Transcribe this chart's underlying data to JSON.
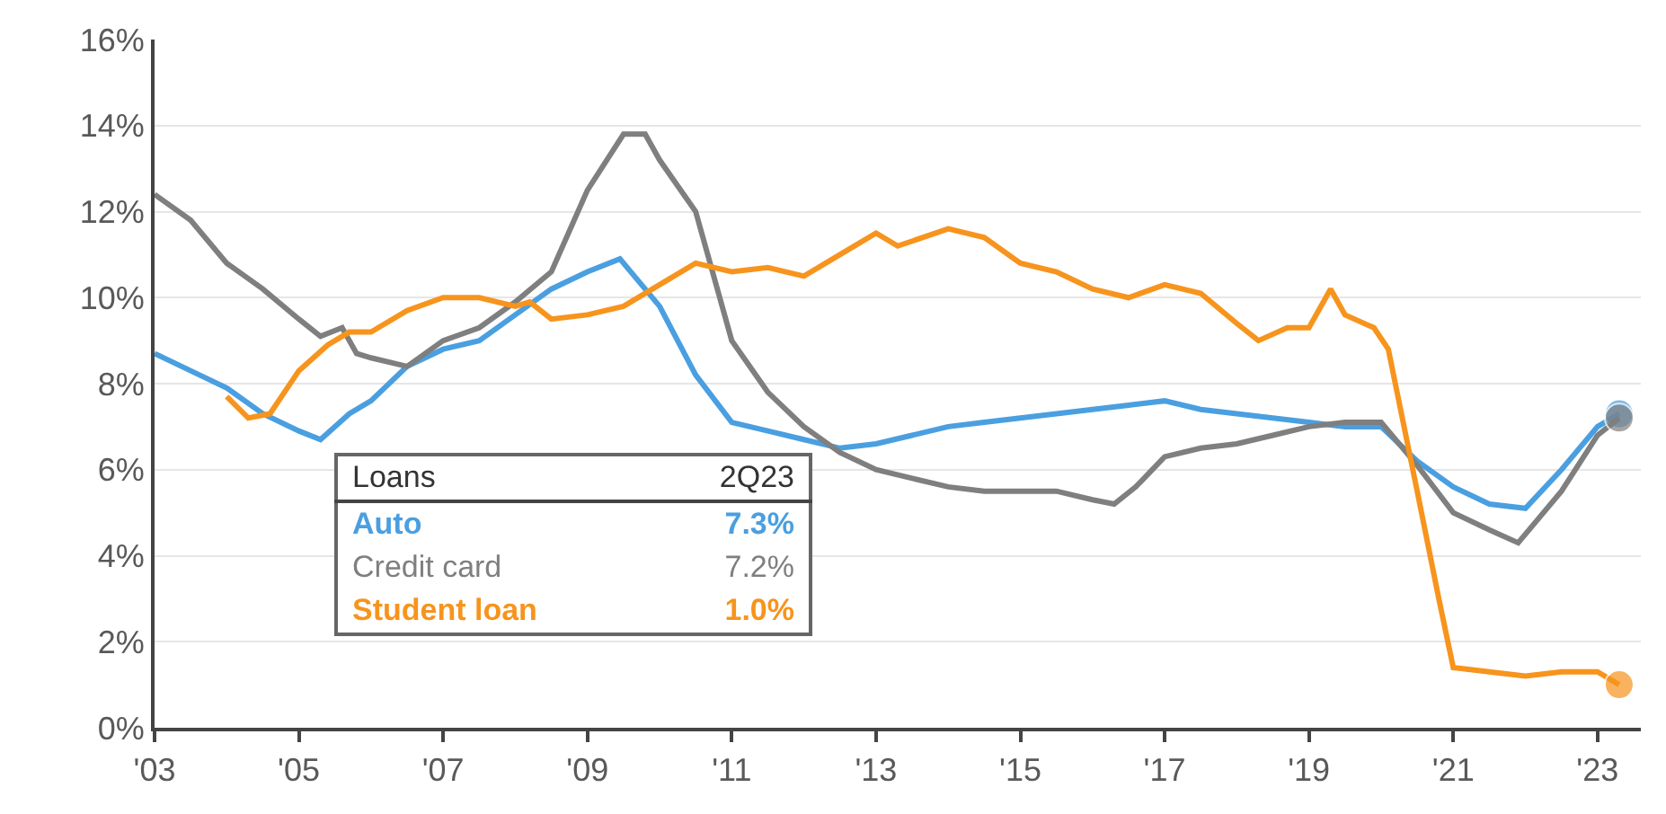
{
  "chart_data": {
    "type": "line",
    "legend_title": "Loans",
    "annotations": [
      "2Q23",
      "7.3%",
      "7.2%",
      "1.0%"
    ],
    "xlim": [
      2003,
      2023.6
    ],
    "xticks": [
      {
        "value": 2003,
        "label": "'03"
      },
      {
        "value": 2005,
        "label": "'05"
      },
      {
        "value": 2007,
        "label": "'07"
      },
      {
        "value": 2009,
        "label": "'09"
      },
      {
        "value": 2011,
        "label": "'11"
      },
      {
        "value": 2013,
        "label": "'13"
      },
      {
        "value": 2015,
        "label": "'15"
      },
      {
        "value": 2017,
        "label": "'17"
      },
      {
        "value": 2019,
        "label": "'19"
      },
      {
        "value": 2021,
        "label": "'21"
      },
      {
        "value": 2023,
        "label": "'23"
      }
    ],
    "ylim": [
      0,
      16
    ],
    "yticks": [
      {
        "value": 0,
        "label": "0%"
      },
      {
        "value": 2,
        "label": "2%"
      },
      {
        "value": 4,
        "label": "4%"
      },
      {
        "value": 6,
        "label": "6%"
      },
      {
        "value": 8,
        "label": "8%"
      },
      {
        "value": 10,
        "label": "10%"
      },
      {
        "value": 12,
        "label": "12%"
      },
      {
        "value": 14,
        "label": "14%"
      },
      {
        "value": 16,
        "label": "16%"
      }
    ],
    "grid": "y",
    "legend": "bottom left",
    "marker": "none",
    "line_style": "solid",
    "series": [
      {
        "name": "Auto",
        "color": "#4a9fe0",
        "x": [
          2003,
          2003.5,
          2004,
          2004.5,
          2005,
          2005.3,
          2005.7,
          2006,
          2006.5,
          2007,
          2007.5,
          2008,
          2008.5,
          2009,
          2009.45,
          2010,
          2010.5,
          2011,
          2011.5,
          2012,
          2012.5,
          2013,
          2013.5,
          2014,
          2014.5,
          2015,
          2015.5,
          2016,
          2016.5,
          2017,
          2017.5,
          2018,
          2018.5,
          2019,
          2019.5,
          2020,
          2020.5,
          2021,
          2021.5,
          2022,
          2022.5,
          2023,
          2023.3
        ],
        "values": [
          8.7,
          8.3,
          7.9,
          7.3,
          6.9,
          6.7,
          7.3,
          7.6,
          8.4,
          8.8,
          9.0,
          9.6,
          10.2,
          10.6,
          10.9,
          9.8,
          8.2,
          7.1,
          6.9,
          6.7,
          6.5,
          6.6,
          6.8,
          7.0,
          7.1,
          7.2,
          7.3,
          7.4,
          7.5,
          7.6,
          7.4,
          7.3,
          7.2,
          7.1,
          7.0,
          7.0,
          6.2,
          5.6,
          5.2,
          5.1,
          6.0,
          7.0,
          7.3
        ]
      },
      {
        "name": "Credit card",
        "color": "#7f7f7f",
        "x": [
          2003,
          2003.5,
          2004,
          2004.5,
          2005,
          2005.3,
          2005.6,
          2005.8,
          2006,
          2006.5,
          2007,
          2007.5,
          2008,
          2008.5,
          2009,
          2009.5,
          2009.8,
          2010,
          2010.5,
          2011,
          2011.5,
          2012,
          2012.5,
          2013,
          2013.5,
          2014,
          2014.5,
          2015,
          2015.5,
          2016,
          2016.3,
          2016.6,
          2017,
          2017.5,
          2018,
          2018.5,
          2019,
          2019.5,
          2020,
          2020.5,
          2021,
          2021.5,
          2021.9,
          2022.5,
          2023,
          2023.3
        ],
        "values": [
          12.4,
          11.8,
          10.8,
          10.2,
          9.5,
          9.1,
          9.3,
          8.7,
          8.6,
          8.4,
          9.0,
          9.3,
          9.9,
          10.6,
          12.5,
          13.8,
          13.8,
          13.2,
          12.0,
          9.0,
          7.8,
          7.0,
          6.4,
          6.0,
          5.8,
          5.6,
          5.5,
          5.5,
          5.5,
          5.3,
          5.2,
          5.6,
          6.3,
          6.5,
          6.6,
          6.8,
          7.0,
          7.1,
          7.1,
          6.1,
          5.0,
          4.6,
          4.3,
          5.5,
          6.8,
          7.2
        ]
      },
      {
        "name": "Student loan",
        "color": "#f7941d",
        "x": [
          2004,
          2004.3,
          2004.6,
          2005,
          2005.4,
          2005.7,
          2006,
          2006.5,
          2007,
          2007.5,
          2008,
          2008.2,
          2008.5,
          2009,
          2009.5,
          2010,
          2010.5,
          2011,
          2011.5,
          2012,
          2012.5,
          2013,
          2013.3,
          2014,
          2014.5,
          2015,
          2015.5,
          2016,
          2016.5,
          2017,
          2017.5,
          2018,
          2018.3,
          2018.7,
          2019,
          2019.3,
          2019.5,
          2019.9,
          2020.1,
          2020.5,
          2020.8,
          2021,
          2021.5,
          2022,
          2022.5,
          2023,
          2023.3
        ],
        "values": [
          7.7,
          7.2,
          7.3,
          8.3,
          8.9,
          9.2,
          9.2,
          9.7,
          10.0,
          10.0,
          9.8,
          9.9,
          9.5,
          9.6,
          9.8,
          10.3,
          10.8,
          10.6,
          10.7,
          10.5,
          11.0,
          11.5,
          11.2,
          11.6,
          11.4,
          10.8,
          10.6,
          10.2,
          10.0,
          10.3,
          10.1,
          9.4,
          9.0,
          9.3,
          9.3,
          10.2,
          9.6,
          9.3,
          8.8,
          5.5,
          3.0,
          1.4,
          1.3,
          1.2,
          1.3,
          1.3,
          1.0
        ]
      }
    ]
  }
}
